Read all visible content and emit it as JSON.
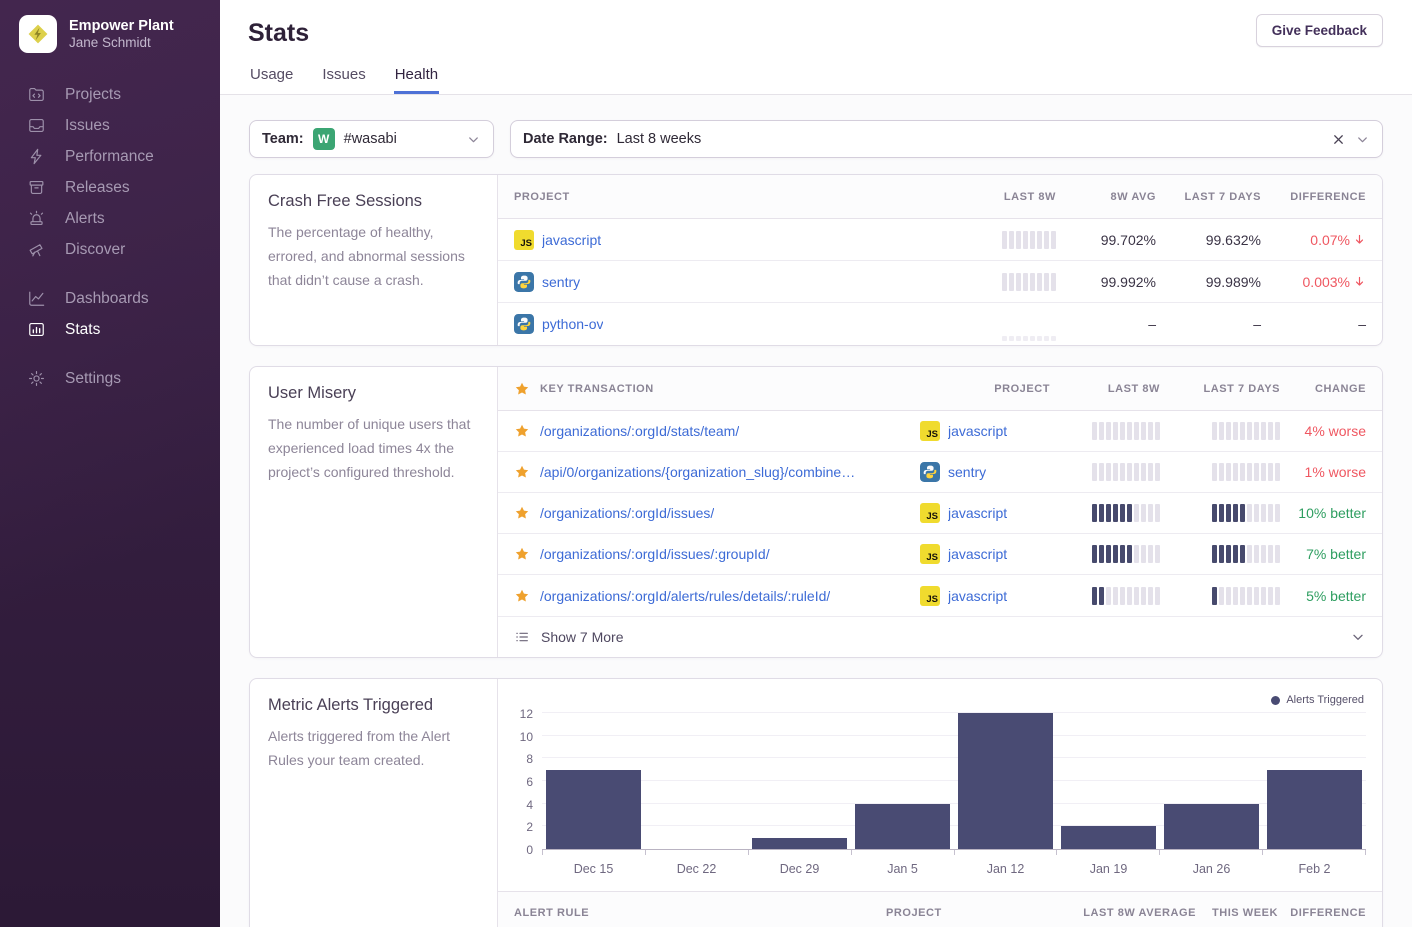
{
  "colors": {
    "accent_blue": "#4e71d6",
    "link_blue": "#3d6bd6",
    "negative_red": "#ef5761",
    "positive_green": "#2e9e60",
    "spark_dark": "#474a6d",
    "spark_light": "#e4e1ea",
    "spark_faint": "#efedf3",
    "star_gold": "#efa12d",
    "team_avatar_green": "#3ba573",
    "js_badge_yellow": "#f0db2e"
  },
  "icons": {
    "javascript_badge_text": "JS"
  },
  "sidebar": {
    "org_name": "Empower Plant",
    "user_name": "Jane Schmidt",
    "logo_icon": "empower-plant-logo",
    "groups": [
      [
        {
          "label": "Projects",
          "icon": "projects-icon"
        },
        {
          "label": "Issues",
          "icon": "issues-icon"
        },
        {
          "label": "Performance",
          "icon": "performance-icon"
        },
        {
          "label": "Releases",
          "icon": "releases-icon"
        },
        {
          "label": "Alerts",
          "icon": "alerts-icon"
        },
        {
          "label": "Discover",
          "icon": "discover-icon"
        }
      ],
      [
        {
          "label": "Dashboards",
          "icon": "dashboards-icon"
        },
        {
          "label": "Stats",
          "icon": "stats-icon",
          "active": true
        }
      ],
      [
        {
          "label": "Settings",
          "icon": "settings-icon"
        }
      ]
    ]
  },
  "header": {
    "title": "Stats",
    "feedback_button": "Give Feedback",
    "tabs": [
      {
        "label": "Usage"
      },
      {
        "label": "Issues"
      },
      {
        "label": "Health",
        "active": true
      }
    ]
  },
  "filters": {
    "team_label": "Team:",
    "team_avatar_letter": "W",
    "team_value": "#wasabi",
    "date_label": "Date Range:",
    "date_value": "Last 8 weeks"
  },
  "crash_free": {
    "title": "Crash Free Sessions",
    "description": "The percentage of healthy, errored, and abnormal sessions that didn’t cause a crash.",
    "columns": [
      "PROJECT",
      "LAST 8W",
      "8W AVG",
      "LAST 7 DAYS",
      "DIFFERENCE"
    ],
    "rows": [
      {
        "project": "javascript",
        "platform": "javascript",
        "spark": "full",
        "avg_8w": "99.702%",
        "last_7_days": "99.632%",
        "difference": "0.07%",
        "trend": "down"
      },
      {
        "project": "sentry",
        "platform": "python",
        "spark": "full",
        "avg_8w": "99.992%",
        "last_7_days": "99.989%",
        "difference": "0.003%",
        "trend": "down"
      },
      {
        "project": "python-ov",
        "platform": "python",
        "spark": "faint",
        "avg_8w": "–",
        "last_7_days": "–",
        "difference": "–",
        "trend": "none"
      }
    ]
  },
  "user_misery": {
    "title": "User Misery",
    "description": "The number of unique users that experienced load times 4x the project’s configured threshold.",
    "columns": [
      "KEY TRANSACTION",
      "PROJECT",
      "LAST 8W",
      "LAST 7 DAYS",
      "CHANGE"
    ],
    "rows": [
      {
        "transaction": "/organizations/:orgId/stats/team/",
        "project": "javascript",
        "platform": "javascript",
        "spark_8w": [
          0,
          0,
          0,
          0,
          0,
          0,
          0,
          0,
          0,
          0
        ],
        "spark_7d": [
          0,
          0,
          0,
          0,
          0,
          0,
          0,
          0,
          0,
          0
        ],
        "change": "4% worse",
        "sentiment": "worse"
      },
      {
        "transaction": "/api/0/organizations/{organization_slug}/combine…",
        "project": "sentry",
        "platform": "python",
        "spark_8w": [
          0,
          0,
          0,
          0,
          0,
          0,
          0,
          0,
          0,
          0
        ],
        "spark_7d": [
          0,
          0,
          0,
          0,
          0,
          0,
          0,
          0,
          0,
          0
        ],
        "change": "1% worse",
        "sentiment": "worse"
      },
      {
        "transaction": "/organizations/:orgId/issues/",
        "project": "javascript",
        "platform": "javascript",
        "spark_8w": [
          1,
          1,
          1,
          1,
          1,
          1,
          0,
          0,
          0,
          0
        ],
        "spark_7d": [
          1,
          1,
          1,
          1,
          1,
          0,
          0,
          0,
          0,
          0
        ],
        "change": "10% better",
        "sentiment": "better"
      },
      {
        "transaction": "/organizations/:orgId/issues/:groupId/",
        "project": "javascript",
        "platform": "javascript",
        "spark_8w": [
          1,
          1,
          1,
          1,
          1,
          1,
          0,
          0,
          0,
          0
        ],
        "spark_7d": [
          1,
          1,
          1,
          1,
          1,
          0,
          0,
          0,
          0,
          0
        ],
        "change": "7% better",
        "sentiment": "better"
      },
      {
        "transaction": "/organizations/:orgId/alerts/rules/details/:ruleId/",
        "project": "javascript",
        "platform": "javascript",
        "spark_8w": [
          1,
          1,
          0,
          0,
          0,
          0,
          0,
          0,
          0,
          0
        ],
        "spark_7d": [
          1,
          0,
          0,
          0,
          0,
          0,
          0,
          0,
          0,
          0
        ],
        "change": "5% better",
        "sentiment": "better"
      }
    ],
    "show_more_label": "Show 7 More"
  },
  "metric_alerts": {
    "title": "Metric Alerts Triggered",
    "description": "Alerts triggered from the Alert Rules your team created.",
    "table_columns": [
      "ALERT RULE",
      "PROJECT",
      "LAST 8W AVERAGE",
      "THIS WEEK",
      "DIFFERENCE"
    ]
  },
  "chart_data": {
    "type": "bar",
    "title": "Metric Alerts Triggered",
    "categories": [
      "Dec 15",
      "Dec 22",
      "Dec 29",
      "Jan 5",
      "Jan 12",
      "Jan 19",
      "Jan 26",
      "Feb 2"
    ],
    "values": [
      7,
      0,
      1,
      4,
      12,
      2,
      4,
      7
    ],
    "series_name": "Alerts Triggered",
    "legend": [
      "Alerts Triggered"
    ],
    "legend_position": "top-right",
    "xlabel": "",
    "ylabel": "",
    "ylim": [
      0,
      12
    ],
    "yticks": [
      0,
      2,
      4,
      6,
      8,
      10,
      12
    ],
    "grid": true,
    "bar_color": "#494b73"
  }
}
